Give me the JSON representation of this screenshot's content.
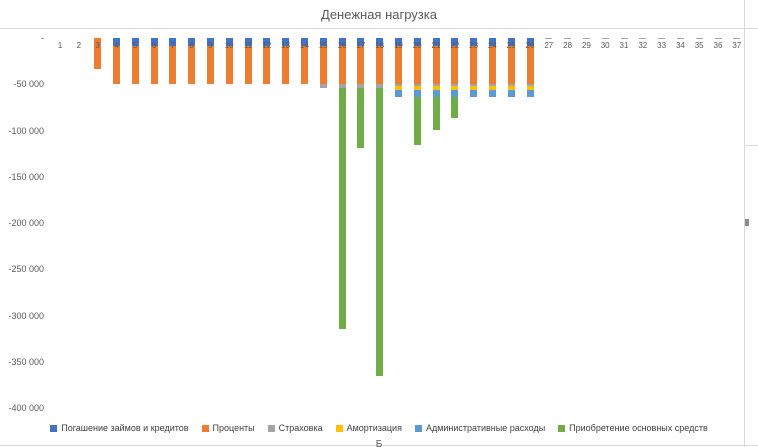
{
  "chart": {
    "title": "Денежная нагрузка",
    "bottom_cut_label": "Б"
  },
  "chart_data": {
    "type": "bar",
    "stacked": true,
    "orientation": "vertical",
    "title": "Денежная нагрузка",
    "xlabel": "",
    "ylabel": "",
    "ylim": [
      -400000,
      0
    ],
    "grid": false,
    "legend_position": "bottom",
    "categories": [
      "1",
      "2",
      "3",
      "4",
      "5",
      "6",
      "7",
      "8",
      "9",
      "10",
      "11",
      "12",
      "13",
      "14",
      "15",
      "16",
      "17",
      "18",
      "19",
      "20",
      "21",
      "22",
      "23",
      "24",
      "25",
      "26",
      "27",
      "28",
      "29",
      "30",
      "31",
      "32",
      "33",
      "34",
      "35",
      "36",
      "37"
    ],
    "y_ticks": [
      {
        "label": "-",
        "value": 0
      },
      {
        "label": "-50 000",
        "value": -50000
      },
      {
        "label": "-100 000",
        "value": -100000
      },
      {
        "label": "-150 000",
        "value": -150000
      },
      {
        "label": "-200 000",
        "value": -200000
      },
      {
        "label": "-250 000",
        "value": -250000
      },
      {
        "label": "-300 000",
        "value": -300000
      },
      {
        "label": "-350 000",
        "value": -350000
      },
      {
        "label": "-400 000",
        "value": -400000
      }
    ],
    "series": [
      {
        "name": "Погашение займов и кредитов",
        "color": "#4472C4",
        "values": [
          0,
          0,
          0,
          -9000,
          -9000,
          -9000,
          -9000,
          -9000,
          -9000,
          -9000,
          -9000,
          -9000,
          -9000,
          -9000,
          -9000,
          -9000,
          -9000,
          -9000,
          -9000,
          -9000,
          -9000,
          -9000,
          -9000,
          -9000,
          -9000,
          -9000,
          0,
          0,
          0,
          0,
          0,
          0,
          0,
          0,
          0,
          0,
          0
        ]
      },
      {
        "name": "Проценты",
        "color": "#ED7D31",
        "values": [
          0,
          0,
          -33000,
          -41000,
          -41000,
          -41000,
          -41000,
          -41000,
          -41000,
          -41000,
          -41000,
          -41000,
          -41000,
          -41000,
          -41000,
          -41000,
          -41000,
          -41000,
          -41000,
          -41000,
          -41000,
          -41000,
          -41000,
          -41000,
          -41000,
          -41000,
          0,
          0,
          0,
          0,
          0,
          0,
          0,
          0,
          0,
          0,
          0
        ]
      },
      {
        "name": "Страховка",
        "color": "#A5A5A5",
        "values": [
          0,
          0,
          0,
          0,
          0,
          0,
          0,
          0,
          0,
          0,
          0,
          0,
          0,
          0,
          -4000,
          -4000,
          -4000,
          -4000,
          -2000,
          -2000,
          -2000,
          -2000,
          -2000,
          -2000,
          -2000,
          -2000,
          -1500,
          -1500,
          -1500,
          -1500,
          -1500,
          -1500,
          -1500,
          -1500,
          -1500,
          -1500,
          -1500
        ]
      },
      {
        "name": "Амортизация",
        "color": "#FFC000",
        "values": [
          0,
          0,
          0,
          0,
          0,
          0,
          0,
          0,
          0,
          0,
          0,
          0,
          0,
          0,
          0,
          0,
          0,
          0,
          -4000,
          -4000,
          -4000,
          -4000,
          -4000,
          -4000,
          -4000,
          -4000,
          0,
          0,
          0,
          0,
          0,
          0,
          0,
          0,
          0,
          0,
          0
        ]
      },
      {
        "name": "Административные расходы",
        "color": "#5B9BD5",
        "values": [
          0,
          0,
          0,
          0,
          0,
          0,
          0,
          0,
          0,
          0,
          0,
          0,
          0,
          0,
          0,
          0,
          0,
          0,
          -8000,
          -8000,
          -8000,
          -8000,
          -8000,
          -8000,
          -8000,
          -8000,
          0,
          0,
          0,
          0,
          0,
          0,
          0,
          0,
          0,
          0,
          0
        ]
      },
      {
        "name": "Приобретение основных средств",
        "color": "#70AD47",
        "values": [
          0,
          0,
          0,
          0,
          0,
          0,
          0,
          0,
          0,
          0,
          0,
          0,
          0,
          0,
          0,
          -261000,
          -65000,
          -311000,
          0,
          -52000,
          -36000,
          -22000,
          0,
          0,
          0,
          0,
          0,
          0,
          0,
          0,
          0,
          0,
          0,
          0,
          0,
          0,
          0
        ]
      }
    ]
  }
}
